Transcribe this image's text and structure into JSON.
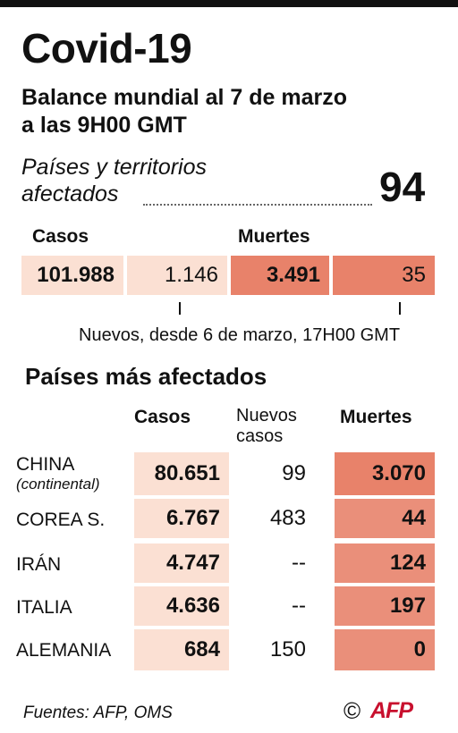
{
  "title": "Covid-19",
  "subtitle_line1": "Balance mundial al 7 de marzo",
  "subtitle_line2": "a las 9H00 GMT",
  "affected": {
    "label_line1": "Países y territorios",
    "label_line2": "afectados",
    "value": "94"
  },
  "global": {
    "cases_header": "Casos",
    "deaths_header": "Muertes",
    "cases": "101.988",
    "new_cases": "1.146",
    "deaths": "3.491",
    "new_deaths": "35",
    "note": "Nuevos, desde 6 de marzo, 17H00 GMT"
  },
  "countries": {
    "section_title": "Países más afectados",
    "headers": {
      "cases": "Casos",
      "new_cases_line1": "Nuevos",
      "new_cases_line2": "casos",
      "deaths": "Muertes"
    },
    "rows": [
      {
        "name": "CHINA",
        "sub": "(continental)",
        "cases": "80.651",
        "new": "99",
        "deaths": "3.070"
      },
      {
        "name": "COREA S.",
        "sub": "",
        "cases": "6.767",
        "new": "483",
        "deaths": "44"
      },
      {
        "name": "IRÁN",
        "sub": "",
        "cases": "4.747",
        "new": "--",
        "deaths": "124"
      },
      {
        "name": "ITALIA",
        "sub": "",
        "cases": "4.636",
        "new": "--",
        "deaths": "197"
      },
      {
        "name": "ALEMANIA",
        "sub": "",
        "cases": "684",
        "new": "150",
        "deaths": "0"
      }
    ]
  },
  "footer": {
    "sources": "Fuentes: AFP, OMS",
    "copyright_symbol": "©",
    "logo_text": "AFP"
  },
  "colors": {
    "light_peach": "#fbe0d3",
    "salmon": "#e8826a",
    "logo_red": "#c8102e"
  }
}
